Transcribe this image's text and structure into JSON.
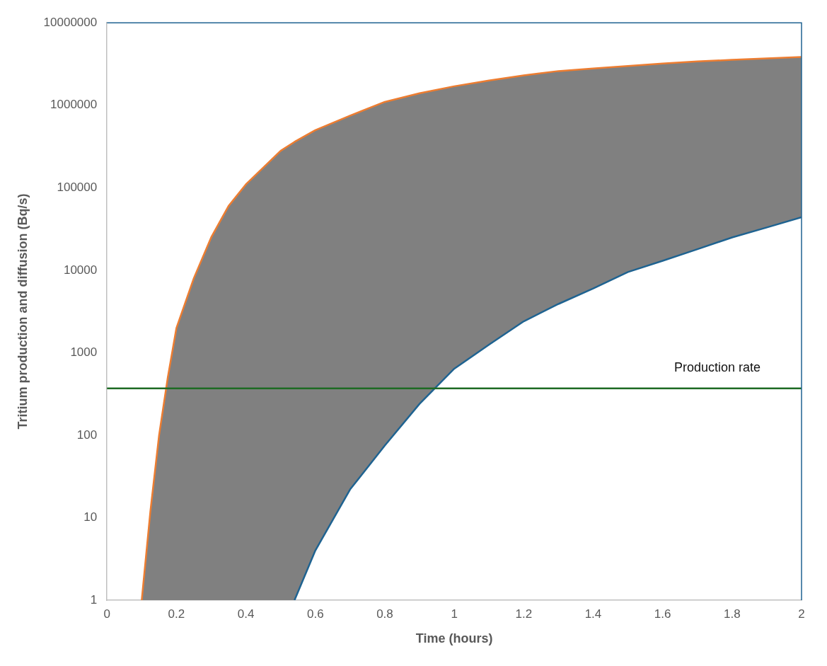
{
  "chart_data": {
    "type": "line",
    "xlabel": "Time (hours)",
    "ylabel": "Tritium production and diffusion (Bq/s)",
    "log": "y",
    "grid": false,
    "legend": false,
    "marker": "none",
    "xlim": [
      0,
      2
    ],
    "xticks": [
      0,
      0.2,
      0.4,
      0.6,
      0.8,
      1,
      1.2,
      1.4,
      1.6,
      1.8,
      2
    ],
    "ylim": [
      1,
      10000000
    ],
    "yticks": [
      1,
      10,
      100,
      1000,
      10000,
      100000,
      1000000,
      10000000
    ],
    "series": [
      {
        "type": "area",
        "color": "#ed7d31",
        "x": [
          0.1,
          0.125,
          0.15,
          0.175,
          0.2,
          0.25,
          0.3,
          0.35,
          0.4,
          0.5,
          0.54,
          0.6,
          0.7,
          0.8,
          0.9,
          1.0,
          1.1,
          1.2,
          1.3,
          1.4,
          1.5,
          1.6,
          1.7,
          1.8,
          1.9,
          2.0
        ],
        "values": [
          1,
          12,
          100,
          500,
          2000,
          8000,
          25000,
          60000,
          110000,
          280000,
          360000,
          500000,
          750000,
          1100000,
          1400000,
          1700000,
          2000000,
          2300000,
          2600000,
          2800000,
          3000000,
          3200000,
          3400000,
          3550000,
          3700000,
          3850000
        ]
      },
      {
        "color": "#1f6391",
        "x": [
          0.54,
          0.6,
          0.7,
          0.8,
          0.9,
          1.0,
          1.1,
          1.2,
          1.3,
          1.4,
          1.5,
          1.6,
          1.7,
          1.8,
          1.9,
          2.0
        ],
        "values": [
          1,
          4,
          22,
          75,
          240,
          640,
          1250,
          2400,
          3900,
          6000,
          9500,
          13000,
          18000,
          25000,
          33000,
          44000
        ]
      }
    ],
    "ref_lines": [
      {
        "axis": "y",
        "value": 370,
        "label": "Production rate",
        "color": "#1e6b24",
        "line_style": "solid"
      }
    ]
  }
}
